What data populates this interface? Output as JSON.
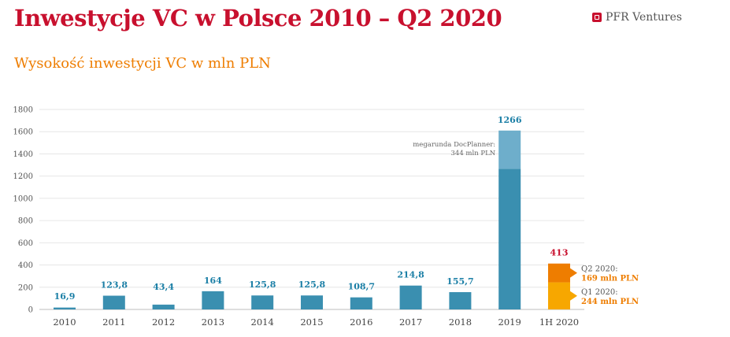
{
  "header": {
    "title": "Inwestycje VC w Polsce 2010 – Q2 2020",
    "brand": "PFR Ventures",
    "subtitle": "Wysokość inwestycji VC w mln PLN"
  },
  "chart_data": {
    "type": "bar",
    "title": "Inwestycje VC w Polsce 2010 – Q2 2020",
    "subtitle": "Wysokość inwestycji VC w mln PLN",
    "ylim": [
      0,
      1800
    ],
    "yticks": [
      0,
      200,
      400,
      600,
      800,
      1000,
      1200,
      1400,
      1600,
      1800
    ],
    "grid": true,
    "categories": [
      "2010",
      "2011",
      "2012",
      "2013",
      "2014",
      "2015",
      "2016",
      "2017",
      "2018",
      "2019",
      "1H 2020"
    ],
    "values": [
      16.9,
      123.8,
      43.4,
      164,
      125.8,
      125.8,
      108.7,
      214.8,
      155.7,
      1266,
      413
    ],
    "value_labels": [
      "16,9",
      "123,8",
      "43,4",
      "164",
      "125,8",
      "125,8",
      "108,7",
      "214,8",
      "155,7",
      "1266",
      "413"
    ],
    "extra_segment": {
      "category": "2019",
      "value": 344,
      "label_lines": [
        "megarunda DocPlanner:",
        "344 mln PLN"
      ]
    },
    "h1_2020_breakdown": [
      {
        "name": "Q1 2020",
        "value": 244,
        "label_lines": [
          "Q1 2020:",
          "244 mln PLN"
        ]
      },
      {
        "name": "Q2 2020",
        "value": 169,
        "label_lines": [
          "Q2 2020:",
          "169 mln PLN"
        ]
      }
    ],
    "colors": {
      "bar": "#3a8fb0",
      "bar_light": "#6eaecb",
      "q1": "#f7a700",
      "q2": "#ee7d00",
      "label_blue": "#1b7fa6",
      "label_red": "#c8102e",
      "label_orange": "#ee7d00"
    }
  }
}
